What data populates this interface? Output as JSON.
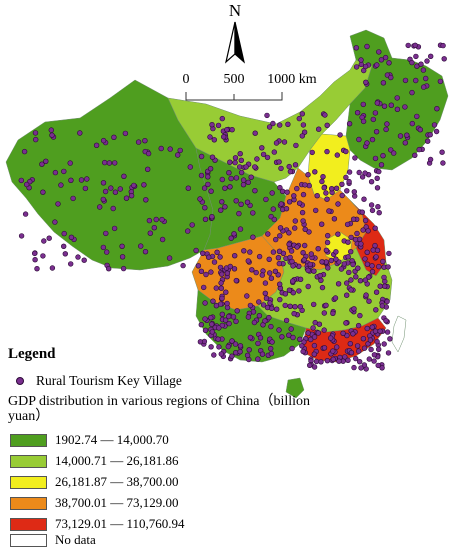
{
  "north_arrow": {
    "label": "N"
  },
  "scale_bar": {
    "ticks": [
      "0",
      "500",
      "1000 km"
    ]
  },
  "legend": {
    "title": "Legend",
    "point_symbol": {
      "label": "Rural Tourism Key Village",
      "color": "#7a2f8f"
    },
    "gdp_title": "GDP distribution in various regions of China（billion yuan）",
    "classes": [
      {
        "label": "1902.74 — 14,000.70",
        "color": "#4f9e1f"
      },
      {
        "label": "14,000.71 — 26,181.86",
        "color": "#98cc35"
      },
      {
        "label": "26,181.87 — 38,700.00",
        "color": "#f2ee1e"
      },
      {
        "label": "38,700.01 — 73,129.00",
        "color": "#ec8a1a"
      },
      {
        "label": "73,129.01 — 110,760.94",
        "color": "#de2a15"
      },
      {
        "label": "No data",
        "color": "#ffffff"
      }
    ]
  }
}
